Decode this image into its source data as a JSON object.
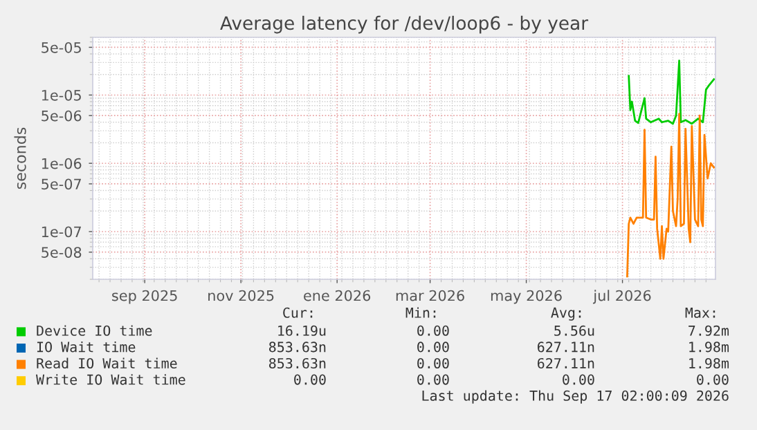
{
  "chart_data": {
    "type": "line",
    "title": "Average latency for /dev/loop6 - by year",
    "ylabel": "seconds",
    "log": "y",
    "grid": true,
    "legend": "bottom",
    "xlim": [
      "2025-08-14",
      "2026-09-13"
    ],
    "xticks": [
      {
        "value": "2025-09-16",
        "label": "sep 2025"
      },
      {
        "value": "2025-11-16",
        "label": "nov 2025"
      },
      {
        "value": "2026-01-16",
        "label": "ene 2026"
      },
      {
        "value": "2026-03-16",
        "label": "mar 2026"
      },
      {
        "value": "2026-05-16",
        "label": "may 2026"
      },
      {
        "value": "2026-07-16",
        "label": "jul 2026"
      }
    ],
    "ylim": [
      2e-08,
      7e-05
    ],
    "yticks": [
      {
        "value": 5e-05,
        "label": "5e-05"
      },
      {
        "value": 1e-05,
        "label": "1e-05"
      },
      {
        "value": 5e-06,
        "label": "5e-06"
      },
      {
        "value": 1e-06,
        "label": "1e-06"
      },
      {
        "value": 5e-07,
        "label": "5e-07"
      },
      {
        "value": 1e-07,
        "label": "1e-07"
      },
      {
        "value": 5e-08,
        "label": "5e-08"
      }
    ],
    "series": [
      {
        "name": "Device IO time",
        "color": "#00cc00",
        "x": [
          "2026-07-20",
          "2026-07-21",
          "2026-07-22",
          "2026-07-24",
          "2026-07-26",
          "2026-07-30",
          "2026-07-31",
          "2026-08-03",
          "2026-08-08",
          "2026-08-10",
          "2026-08-14",
          "2026-08-17",
          "2026-08-19",
          "2026-08-21",
          "2026-08-22",
          "2026-08-25",
          "2026-08-29",
          "2026-09-02",
          "2026-09-05",
          "2026-09-07",
          "2026-09-09",
          "2026-09-12"
        ],
        "values": [
          1.9e-05,
          6e-06,
          8e-06,
          4.2e-06,
          3.9e-06,
          9e-06,
          4.5e-06,
          4e-06,
          4.5e-06,
          4e-06,
          4.2e-06,
          3.8e-06,
          5e-06,
          3.2e-05,
          4e-06,
          4.3e-06,
          3.8e-06,
          4.5e-06,
          4e-06,
          1.2e-05,
          1.4e-05,
          1.7e-05
        ]
      },
      {
        "name": "IO Wait time",
        "color": "#0066b3"
      },
      {
        "name": "Read IO Wait time",
        "color": "#ff8000",
        "x": [
          "2026-07-19",
          "2026-07-20",
          "2026-07-21",
          "2026-07-23",
          "2026-07-25",
          "2026-07-29",
          "2026-07-30",
          "2026-07-31",
          "2026-08-03",
          "2026-08-05",
          "2026-08-06",
          "2026-08-07",
          "2026-08-09",
          "2026-08-10",
          "2026-08-11",
          "2026-08-13",
          "2026-08-14",
          "2026-08-16",
          "2026-08-17",
          "2026-08-19",
          "2026-08-20",
          "2026-08-21",
          "2026-08-22",
          "2026-08-24",
          "2026-08-25",
          "2026-08-27",
          "2026-08-28",
          "2026-08-29",
          "2026-08-31",
          "2026-09-02",
          "2026-09-03",
          "2026-09-04",
          "2026-09-05",
          "2026-09-06",
          "2026-09-08",
          "2026-09-10",
          "2026-09-12"
        ],
        "values": [
          2.2e-08,
          1.3e-07,
          1.6e-07,
          1.3e-07,
          1.6e-07,
          1.6e-07,
          3.1e-06,
          1.6e-07,
          1.5e-07,
          1.5e-07,
          1.25e-06,
          1.1e-07,
          4e-08,
          1.2e-07,
          4e-08,
          1.1e-07,
          1e-07,
          1.75e-06,
          2e-07,
          1.2e-07,
          3e-07,
          5.3e-06,
          1.2e-07,
          1.3e-07,
          3.2e-06,
          1.1e-07,
          7e-08,
          3.5e-06,
          1.5e-07,
          1.2e-07,
          5e-06,
          1.5e-07,
          1.2e-07,
          2.6e-06,
          6e-07,
          1e-06,
          8.7e-07
        ]
      },
      {
        "name": "Write IO Wait time",
        "color": "#ffcc00"
      }
    ],
    "annotations": [
      "Cur:",
      "Min:",
      "Avg:",
      "Max:",
      "16.19u",
      "0.00",
      "5.56u",
      "7.92m",
      "853.63n",
      "0.00",
      "627.11n",
      "1.98m",
      "853.63n",
      "0.00",
      "627.11n",
      "1.98m",
      "0.00",
      "0.00",
      "0.00",
      "0.00",
      "Last update: Thu Sep 17 02:00:09 2026"
    ]
  }
}
